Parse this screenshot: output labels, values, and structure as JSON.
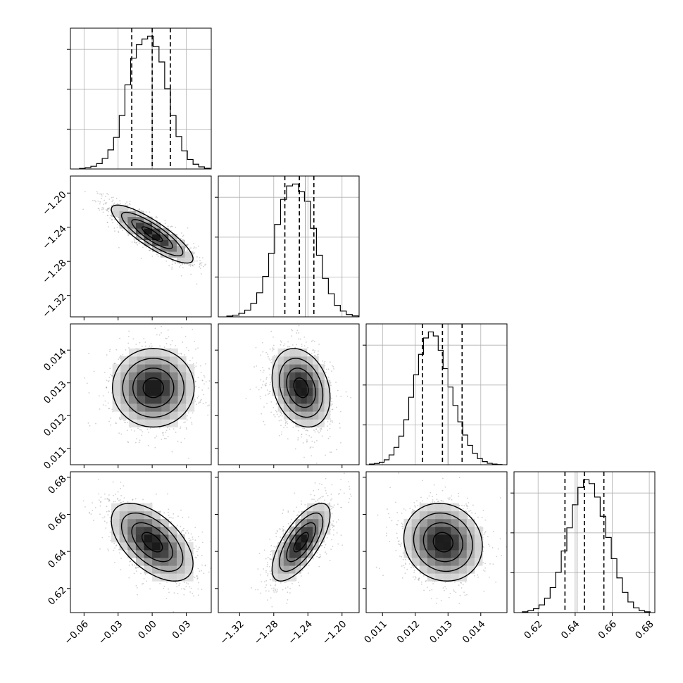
{
  "chart_data": {
    "type": "corner",
    "title": "",
    "grid": true,
    "parameters": [
      {
        "label": "",
        "range": [
          -0.072,
          0.052
        ],
        "ticks": [
          -0.06,
          -0.03,
          0.0,
          0.03
        ],
        "tick_labels": [
          "−0.06",
          "−0.03",
          "0.00",
          "0.03"
        ],
        "quantiles": [
          -0.018,
          0.0,
          0.016
        ],
        "truth": 0.0,
        "histogram": {
          "bin_edges": [
            -0.064,
            -0.059,
            -0.054,
            -0.049,
            -0.044,
            -0.039,
            -0.034,
            -0.029,
            -0.024,
            -0.019,
            -0.014,
            -0.009,
            -0.004,
            0.001,
            0.006,
            0.011,
            0.016,
            0.021,
            0.026,
            0.031,
            0.036,
            0.041,
            0.046,
            0.051
          ],
          "counts": [
            3,
            7,
            14,
            28,
            55,
            100,
            165,
            280,
            440,
            580,
            650,
            680,
            695,
            640,
            560,
            420,
            280,
            170,
            95,
            50,
            25,
            11,
            4
          ]
        }
      },
      {
        "label": "",
        "range": [
          -1.345,
          -1.18
        ],
        "ticks": [
          -1.32,
          -1.28,
          -1.24,
          -1.2
        ],
        "tick_labels": [
          "−1.32",
          "−1.28",
          "−1.24",
          "−1.20"
        ],
        "quantiles": [
          -1.267,
          -1.25,
          -1.233
        ],
        "truth": -1.243,
        "histogram": {
          "bin_edges": [
            -1.335,
            -1.328,
            -1.321,
            -1.314,
            -1.307,
            -1.3,
            -1.293,
            -1.286,
            -1.279,
            -1.272,
            -1.265,
            -1.258,
            -1.251,
            -1.244,
            -1.237,
            -1.23,
            -1.223,
            -1.216,
            -1.209,
            -1.202,
            -1.195,
            -1.188,
            -1.181
          ],
          "counts": [
            4,
            9,
            18,
            35,
            70,
            125,
            210,
            330,
            480,
            610,
            680,
            690,
            650,
            600,
            460,
            320,
            200,
            120,
            60,
            30,
            12,
            5
          ]
        }
      },
      {
        "label": "",
        "range": [
          0.0105,
          0.0148
        ],
        "ticks": [
          0.011,
          0.012,
          0.013,
          0.014
        ],
        "tick_labels": [
          "0.011",
          "0.012",
          "0.013",
          "0.014"
        ],
        "quantiles": [
          0.01222,
          0.01283,
          0.01343
        ],
        "truth": 0.013,
        "histogram": {
          "bin_edges": [
            0.0106,
            0.01075,
            0.0109,
            0.01105,
            0.0112,
            0.01135,
            0.0115,
            0.01165,
            0.0118,
            0.01195,
            0.0121,
            0.01225,
            0.0124,
            0.01255,
            0.0127,
            0.01285,
            0.013,
            0.01315,
            0.0133,
            0.01345,
            0.0136,
            0.01375,
            0.0139,
            0.01405,
            0.0142,
            0.01435,
            0.0145,
            0.01465
          ],
          "counts": [
            3,
            6,
            12,
            24,
            48,
            85,
            140,
            220,
            330,
            440,
            540,
            620,
            650,
            630,
            560,
            470,
            380,
            290,
            210,
            145,
            95,
            55,
            30,
            15,
            7,
            3,
            1
          ]
        }
      },
      {
        "label": "",
        "range": [
          0.607,
          0.683
        ],
        "ticks": [
          0.62,
          0.64,
          0.66,
          0.68
        ],
        "tick_labels": [
          "0.62",
          "0.64",
          "0.66",
          "0.68"
        ],
        "quantiles": [
          0.6345,
          0.645,
          0.6555
        ],
        "truth": 0.641,
        "histogram": {
          "bin_edges": [
            0.6115,
            0.6145,
            0.6175,
            0.6205,
            0.6235,
            0.6265,
            0.6295,
            0.6325,
            0.6355,
            0.6385,
            0.6415,
            0.6445,
            0.6475,
            0.6505,
            0.6535,
            0.6565,
            0.6595,
            0.6625,
            0.6655,
            0.6685,
            0.6715,
            0.6745,
            0.6775,
            0.6805
          ],
          "counts": [
            4,
            10,
            20,
            40,
            75,
            130,
            210,
            320,
            440,
            560,
            650,
            690,
            670,
            600,
            500,
            390,
            280,
            180,
            105,
            55,
            25,
            10,
            4
          ]
        }
      }
    ],
    "pairs": [
      {
        "x_param": 0,
        "y_param": 1,
        "mean": [
          0.0,
          -1.248
        ],
        "sd": [
          0.018,
          0.017
        ],
        "correlation": -0.85
      },
      {
        "x_param": 0,
        "y_param": 2,
        "mean": [
          0.001,
          0.01285
        ],
        "sd": [
          0.018,
          0.0006
        ],
        "correlation": 0.0
      },
      {
        "x_param": 1,
        "y_param": 2,
        "mean": [
          -1.248,
          0.01285
        ],
        "sd": [
          0.017,
          0.0006
        ],
        "correlation": -0.25
      },
      {
        "x_param": 0,
        "y_param": 3,
        "mean": [
          0.0,
          0.645
        ],
        "sd": [
          0.018,
          0.0105
        ],
        "correlation": -0.55
      },
      {
        "x_param": 1,
        "y_param": 3,
        "mean": [
          -1.248,
          0.645
        ],
        "sd": [
          0.017,
          0.0105
        ],
        "correlation": 0.7
      },
      {
        "x_param": 2,
        "y_param": 3,
        "mean": [
          0.01285,
          0.645
        ],
        "sd": [
          0.0006,
          0.0105
        ],
        "correlation": -0.1
      }
    ],
    "contour_levels": [
      0.5,
      1.0,
      1.5,
      2.0
    ],
    "colors": {
      "line": "#000000",
      "grid": "#b0b0b0",
      "points": "#777777"
    }
  }
}
